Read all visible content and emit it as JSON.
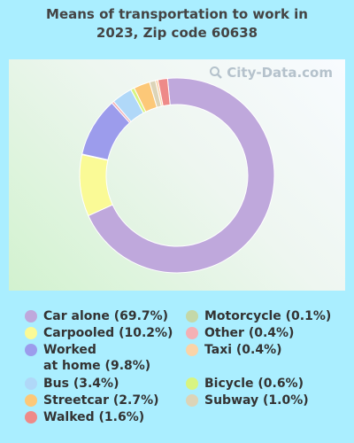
{
  "title_line1": "Means of transportation to work in",
  "title_line2": "2023, Zip code 60638",
  "watermark": "City-Data.com",
  "chart_data": {
    "type": "pie",
    "donut": true,
    "title": "Means of transportation to work in 2023, Zip code 60638",
    "start_category": "Walked",
    "order": [
      "Car alone",
      "Carpooled",
      "Motorcycle",
      "Worked at home",
      "Other",
      "Bus",
      "Bicycle",
      "Streetcar",
      "Subway",
      "Taxi",
      "Walked"
    ],
    "series": [
      {
        "name": "Car alone",
        "value": 69.7,
        "label": "Car alone (69.7%)",
        "color": "#bfa8dc"
      },
      {
        "name": "Carpooled",
        "value": 10.2,
        "label": "Carpooled (10.2%)",
        "color": "#fafa96"
      },
      {
        "name": "Worked at home",
        "value": 9.8,
        "label": "Worked at home (9.8%)",
        "label_line1": "Worked",
        "label_line2": "at home (9.8%)",
        "color": "#9c9cec"
      },
      {
        "name": "Bus",
        "value": 3.4,
        "label": "Bus (3.4%)",
        "color": "#b0d8f8"
      },
      {
        "name": "Streetcar",
        "value": 2.7,
        "label": "Streetcar (2.7%)",
        "color": "#fcc878"
      },
      {
        "name": "Walked",
        "value": 1.6,
        "label": "Walked (1.6%)",
        "color": "#ee8a88"
      },
      {
        "name": "Motorcycle",
        "value": 0.1,
        "label": "Motorcycle (0.1%)",
        "color": "#c4d8a8"
      },
      {
        "name": "Other",
        "value": 0.4,
        "label": "Other (0.4%)",
        "color": "#f4b0b4"
      },
      {
        "name": "Taxi",
        "value": 0.4,
        "label": "Taxi (0.4%)",
        "color": "#fad4a8"
      },
      {
        "name": "Bicycle",
        "value": 0.6,
        "label": "Bicycle (0.6%)",
        "color": "#d8f480"
      },
      {
        "name": "Subway",
        "value": 1.0,
        "label": "Subway (1.0%)",
        "color": "#dcd4b8"
      }
    ]
  }
}
